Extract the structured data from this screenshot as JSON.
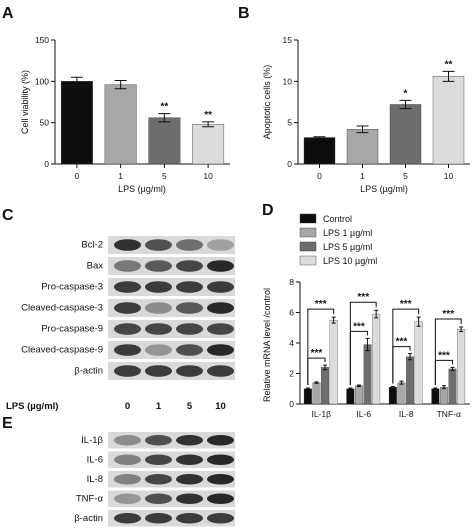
{
  "panels": {
    "A": "A",
    "B": "B",
    "C": "C",
    "D": "D",
    "E": "E"
  },
  "colors": {
    "black": "#0d0d0d",
    "grey_dark": "#6d6d6d",
    "grey_mid": "#a7a7a7",
    "grey_light": "#dcdcdc",
    "band": "#3a3a3a",
    "blot_bg": "#d9d9d9"
  },
  "chart_data": [
    {
      "id": "A",
      "type": "bar",
      "categories": [
        "0",
        "1",
        "5",
        "10"
      ],
      "values": [
        100,
        96,
        56,
        48
      ],
      "errors": [
        5,
        5,
        5,
        3
      ],
      "annotations": [
        "",
        "",
        "**",
        "**"
      ],
      "colors": [
        "#0d0d0d",
        "#a7a7a7",
        "#6d6d6d",
        "#dcdcdc"
      ],
      "xlabel": "LPS (µg/ml)",
      "ylabel": "Cell viability (%)",
      "ylim": [
        0,
        150
      ],
      "yticks": [
        "0",
        "50",
        "100",
        "150"
      ]
    },
    {
      "id": "B",
      "type": "bar",
      "categories": [
        "0",
        "1",
        "5",
        "10"
      ],
      "values": [
        3.2,
        4.2,
        7.2,
        10.6
      ],
      "errors": [
        0.1,
        0.4,
        0.5,
        0.6
      ],
      "annotations": [
        "",
        "",
        "*",
        "**"
      ],
      "colors": [
        "#0d0d0d",
        "#a7a7a7",
        "#6d6d6d",
        "#dcdcdc"
      ],
      "xlabel": "LPS (µg/ml)",
      "ylabel": "Apoptotic cells (%)",
      "ylim": [
        0,
        15
      ],
      "yticks": [
        "0",
        "5",
        "10",
        "15"
      ]
    },
    {
      "id": "D",
      "type": "bar",
      "categories": [
        "IL-1β",
        "IL-6",
        "IL-8",
        "TNF-α"
      ],
      "series": [
        {
          "name": "Control",
          "values": [
            1.0,
            1.0,
            1.1,
            1.0
          ],
          "errors": [
            0.05,
            0.05,
            0.05,
            0.05
          ],
          "color": "#0d0d0d"
        },
        {
          "name": "LPS 1 µg/ml",
          "values": [
            1.4,
            1.2,
            1.4,
            1.1
          ],
          "errors": [
            0.05,
            0.05,
            0.1,
            0.1
          ],
          "color": "#a7a7a7"
        },
        {
          "name": "LPS 5 µg/ml",
          "values": [
            2.4,
            3.9,
            3.1,
            2.3
          ],
          "errors": [
            0.15,
            0.4,
            0.2,
            0.1
          ],
          "color": "#6d6d6d"
        },
        {
          "name": "LPS 10 µg/ml",
          "values": [
            5.5,
            5.9,
            5.4,
            4.9
          ],
          "errors": [
            0.2,
            0.25,
            0.3,
            0.15
          ],
          "color": "#dcdcdc"
        }
      ],
      "sig_label": "***",
      "ylabel": "Relative mRNA level /control",
      "ylim": [
        0,
        8
      ],
      "yticks": [
        "0",
        "2",
        "4",
        "6",
        "8"
      ],
      "legend": "top-left"
    }
  ],
  "blot_c": {
    "rows": [
      {
        "label": "Bcl-2",
        "intensity": [
          0.9,
          0.75,
          0.6,
          0.35
        ]
      },
      {
        "label": "Bax",
        "intensity": [
          0.55,
          0.7,
          0.8,
          0.95
        ]
      },
      {
        "label": "Pro-caspase-3",
        "intensity": [
          0.85,
          0.85,
          0.85,
          0.85
        ]
      },
      {
        "label": "Cleaved-caspase-3",
        "intensity": [
          0.85,
          0.45,
          0.7,
          0.95
        ]
      },
      {
        "label": "Pro-caspase-9",
        "intensity": [
          0.8,
          0.8,
          0.8,
          0.8
        ]
      },
      {
        "label": "Cleaved-caspase-9",
        "intensity": [
          0.85,
          0.4,
          0.75,
          0.95
        ]
      },
      {
        "label": "β-actin",
        "intensity": [
          0.85,
          0.85,
          0.85,
          0.85
        ]
      }
    ],
    "lps_label": "LPS (µg/ml)",
    "lanes": [
      "0",
      "1",
      "5",
      "10"
    ]
  },
  "blot_e": {
    "rows": [
      {
        "label": "IL-1β",
        "intensity": [
          0.45,
          0.75,
          0.9,
          0.95
        ]
      },
      {
        "label": "IL-6",
        "intensity": [
          0.5,
          0.8,
          0.9,
          0.95
        ]
      },
      {
        "label": "IL-8",
        "intensity": [
          0.5,
          0.8,
          0.9,
          0.95
        ]
      },
      {
        "label": "TNF-α",
        "intensity": [
          0.4,
          0.75,
          0.9,
          0.95
        ]
      },
      {
        "label": "β-actin",
        "intensity": [
          0.85,
          0.85,
          0.85,
          0.85
        ]
      }
    ]
  }
}
